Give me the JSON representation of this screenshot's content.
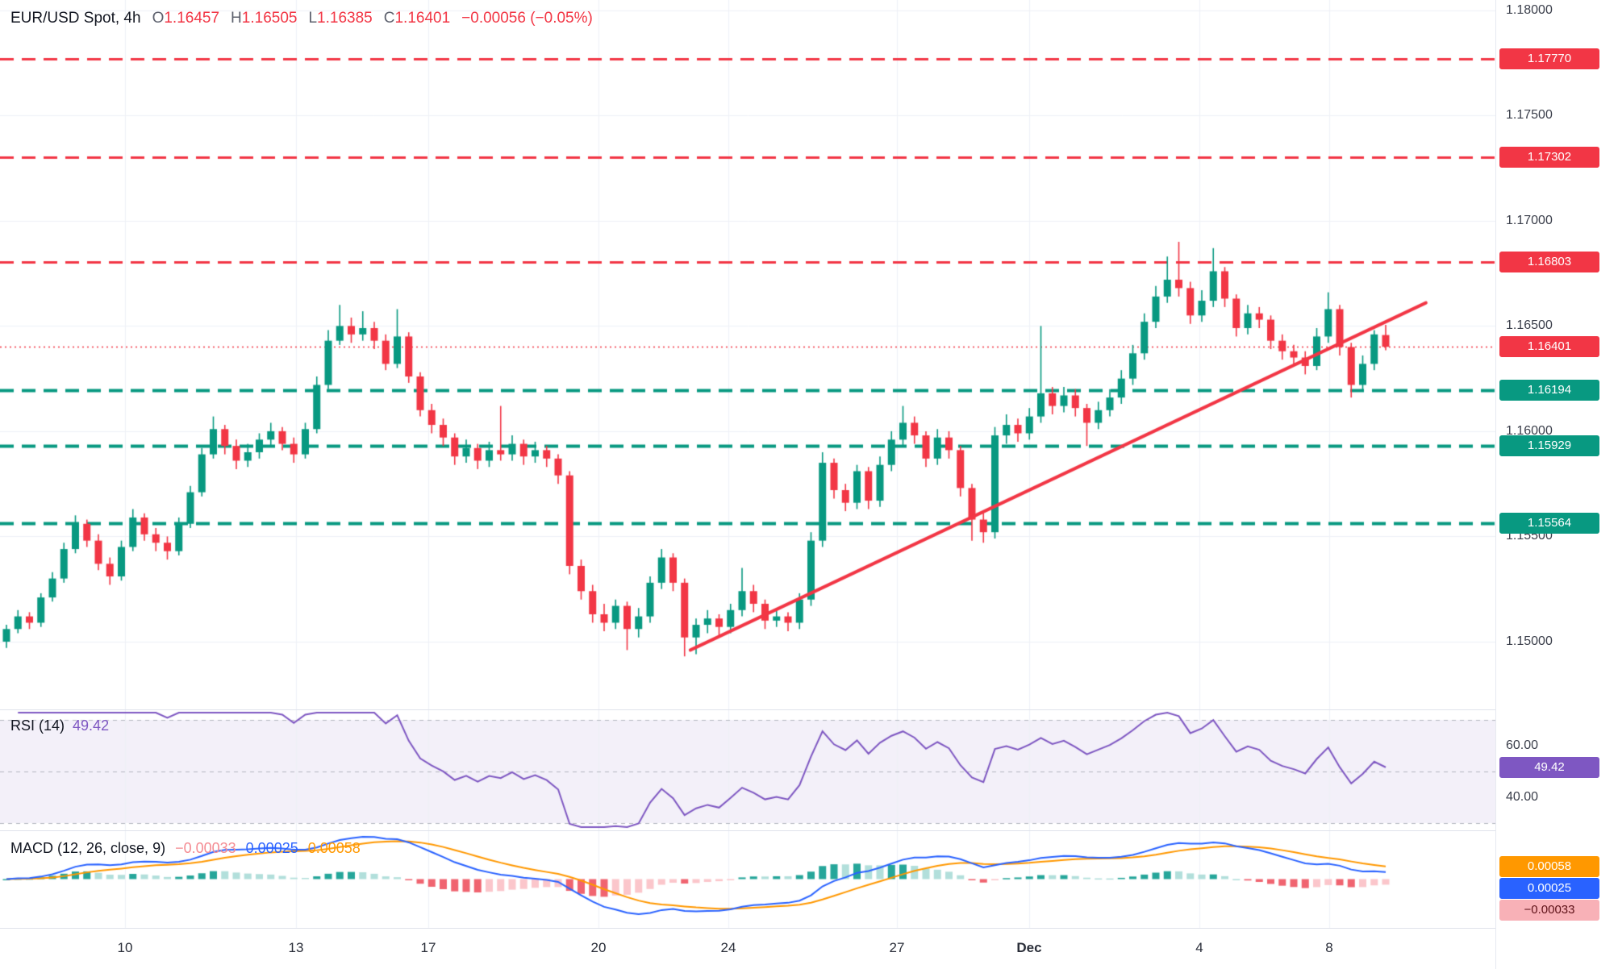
{
  "legend": {
    "symbol": "EUR/USD Spot, 4h",
    "o_key": "O",
    "open": "1.16457",
    "h_key": "H",
    "high": "1.16505",
    "l_key": "L",
    "low": "1.16385",
    "c_key": "C",
    "close": "1.16401",
    "change": "−0.00056 (−0.05%)"
  },
  "colors": {
    "up": "#089981",
    "down": "#f23645",
    "resistance": "#f23645",
    "support": "#089981",
    "trendline": "#f23645",
    "current_line": "#f23645",
    "grid": "#eef1f7",
    "rsi_line": "#7e57c2",
    "rsi_band_fill": "rgba(126,87,194,0.09)",
    "band_dash": "#b4b7c0",
    "macd_line": "#2962ff",
    "macd_signal": "#ff9800",
    "hist_grow_above": "#26a69a",
    "hist_fall_above": "#b2dfdb",
    "hist_grow_below": "#fbc6cb",
    "hist_fall_below": "#f06470"
  },
  "chart_data": {
    "type": "candlestick",
    "symbol": "EUR/USD Spot",
    "interval": "4h",
    "price_axis": {
      "top_price": 1.18049,
      "bottom_price": 1.14678,
      "ticks": [
        {
          "price": 1.18,
          "label": "1.18000"
        },
        {
          "price": 1.175,
          "label": "1.17500"
        },
        {
          "price": 1.17,
          "label": "1.17000"
        },
        {
          "price": 1.165,
          "label": "1.16500"
        },
        {
          "price": 1.16,
          "label": "1.16000"
        },
        {
          "price": 1.155,
          "label": "1.15500"
        },
        {
          "price": 1.15,
          "label": "1.15000"
        }
      ]
    },
    "levels": [
      {
        "price": 1.1777,
        "label": "1.17770",
        "kind": "resistance"
      },
      {
        "price": 1.17302,
        "label": "1.17302",
        "kind": "resistance"
      },
      {
        "price": 1.16803,
        "label": "1.16803",
        "kind": "resistance"
      },
      {
        "price": 1.16194,
        "label": "1.16194",
        "kind": "support"
      },
      {
        "price": 1.15929,
        "label": "1.15929",
        "kind": "support"
      },
      {
        "price": 1.15564,
        "label": "1.15564",
        "kind": "support"
      }
    ],
    "current_price": {
      "price": 1.16401,
      "label": "1.16401"
    },
    "trendline": {
      "from_index": 59.5,
      "from_price": 1.1496,
      "to_index": 123.5,
      "to_price": 1.1661
    },
    "time_ticks": [
      {
        "label": "10",
        "index": 10.3
      },
      {
        "label": "13",
        "index": 25.2
      },
      {
        "label": "17",
        "index": 36.7
      },
      {
        "label": "20",
        "index": 51.5
      },
      {
        "label": "24",
        "index": 62.8
      },
      {
        "label": "27",
        "index": 77.5
      },
      {
        "label": "Dec",
        "index": 89,
        "bold": true
      },
      {
        "label": "4",
        "index": 103.8
      },
      {
        "label": "8",
        "index": 115.1
      }
    ],
    "indicators": {
      "rsi": {
        "title": "RSI (14)",
        "period": 14,
        "value_label": "49.42",
        "upper_band": 70,
        "mid_band": 50,
        "lower_band": 30,
        "axis_labels": [
          {
            "value": 60,
            "label": "60.00"
          },
          {
            "value": 40,
            "label": "40.00"
          }
        ]
      },
      "macd": {
        "title": "MACD (12, 26, close, 9)",
        "fast": 12,
        "slow": 26,
        "source": "close",
        "smoothing": 9,
        "hist_label": "−0.00033",
        "macd_label": "0.00025",
        "signal_label": "0.00058"
      }
    },
    "candles": [
      [
        1.15,
        1.1508,
        1.1497,
        1.1506
      ],
      [
        1.1506,
        1.1515,
        1.1504,
        1.1512
      ],
      [
        1.1512,
        1.1514,
        1.1506,
        1.1509
      ],
      [
        1.1509,
        1.1523,
        1.1507,
        1.1521
      ],
      [
        1.1521,
        1.1533,
        1.1519,
        1.153
      ],
      [
        1.153,
        1.1547,
        1.1528,
        1.1544
      ],
      [
        1.1544,
        1.156,
        1.1542,
        1.1556
      ],
      [
        1.1556,
        1.1558,
        1.1545,
        1.1548
      ],
      [
        1.1548,
        1.1551,
        1.1534,
        1.1537
      ],
      [
        1.1537,
        1.154,
        1.1527,
        1.1531
      ],
      [
        1.1531,
        1.1548,
        1.1529,
        1.1545
      ],
      [
        1.1545,
        1.1563,
        1.1543,
        1.1559
      ],
      [
        1.1559,
        1.1561,
        1.1548,
        1.1551
      ],
      [
        1.1551,
        1.1554,
        1.1543,
        1.1547
      ],
      [
        1.1547,
        1.155,
        1.1539,
        1.1543
      ],
      [
        1.1543,
        1.1559,
        1.1541,
        1.1556
      ],
      [
        1.1556,
        1.1574,
        1.1554,
        1.1571
      ],
      [
        1.1571,
        1.1592,
        1.1569,
        1.1589
      ],
      [
        1.1589,
        1.1607,
        1.1587,
        1.1601
      ],
      [
        1.1601,
        1.1603,
        1.1589,
        1.1593
      ],
      [
        1.1593,
        1.1596,
        1.1582,
        1.1586
      ],
      [
        1.1586,
        1.1594,
        1.1583,
        1.159
      ],
      [
        1.159,
        1.1599,
        1.1587,
        1.1596
      ],
      [
        1.1596,
        1.1604,
        1.1593,
        1.16
      ],
      [
        1.16,
        1.1602,
        1.1591,
        1.1594
      ],
      [
        1.1594,
        1.1597,
        1.1585,
        1.1589
      ],
      [
        1.1589,
        1.1604,
        1.1587,
        1.1601
      ],
      [
        1.1601,
        1.1626,
        1.1599,
        1.1622
      ],
      [
        1.1622,
        1.1648,
        1.162,
        1.1643
      ],
      [
        1.1643,
        1.166,
        1.1641,
        1.165
      ],
      [
        1.165,
        1.1654,
        1.1642,
        1.1646
      ],
      [
        1.1646,
        1.1657,
        1.1643,
        1.1649
      ],
      [
        1.1649,
        1.1652,
        1.1639,
        1.1643
      ],
      [
        1.1643,
        1.1646,
        1.1629,
        1.1632
      ],
      [
        1.1632,
        1.1658,
        1.163,
        1.1645
      ],
      [
        1.1645,
        1.1647,
        1.1623,
        1.1626
      ],
      [
        1.1626,
        1.1628,
        1.1607,
        1.161
      ],
      [
        1.161,
        1.1613,
        1.1599,
        1.1603
      ],
      [
        1.1603,
        1.1606,
        1.1593,
        1.1597
      ],
      [
        1.1597,
        1.1599,
        1.1584,
        1.1588
      ],
      [
        1.1588,
        1.1596,
        1.1585,
        1.1592
      ],
      [
        1.1592,
        1.1594,
        1.1582,
        1.1586
      ],
      [
        1.1586,
        1.1595,
        1.1583,
        1.1591
      ],
      [
        1.1591,
        1.1612,
        1.1586,
        1.1589
      ],
      [
        1.1589,
        1.1598,
        1.1586,
        1.1594
      ],
      [
        1.1594,
        1.1596,
        1.1584,
        1.1588
      ],
      [
        1.1588,
        1.1595,
        1.1585,
        1.1591
      ],
      [
        1.1591,
        1.1593,
        1.1583,
        1.1587
      ],
      [
        1.1587,
        1.1589,
        1.1575,
        1.1579
      ],
      [
        1.1579,
        1.1581,
        1.1532,
        1.1536
      ],
      [
        1.1536,
        1.1539,
        1.152,
        1.1524
      ],
      [
        1.1524,
        1.1527,
        1.1509,
        1.1513
      ],
      [
        1.1513,
        1.1518,
        1.1505,
        1.1509
      ],
      [
        1.1509,
        1.152,
        1.1506,
        1.1517
      ],
      [
        1.1517,
        1.1519,
        1.1496,
        1.1506
      ],
      [
        1.1506,
        1.1516,
        1.1502,
        1.1512
      ],
      [
        1.1512,
        1.1531,
        1.1509,
        1.1528
      ],
      [
        1.1528,
        1.1544,
        1.1525,
        1.154
      ],
      [
        1.154,
        1.1542,
        1.1524,
        1.1528
      ],
      [
        1.1528,
        1.153,
        1.1493,
        1.1502
      ],
      [
        1.1502,
        1.1511,
        1.1494,
        1.1508
      ],
      [
        1.1508,
        1.1515,
        1.1504,
        1.1511
      ],
      [
        1.1511,
        1.1513,
        1.1503,
        1.1507
      ],
      [
        1.1507,
        1.1518,
        1.1504,
        1.1515
      ],
      [
        1.1515,
        1.1535,
        1.1512,
        1.1524
      ],
      [
        1.1524,
        1.1527,
        1.1514,
        1.1518
      ],
      [
        1.1518,
        1.152,
        1.1506,
        1.151
      ],
      [
        1.151,
        1.1516,
        1.1507,
        1.1512
      ],
      [
        1.1512,
        1.1514,
        1.1505,
        1.1509
      ],
      [
        1.1509,
        1.1523,
        1.1506,
        1.152
      ],
      [
        1.152,
        1.1552,
        1.1517,
        1.1548
      ],
      [
        1.1548,
        1.159,
        1.1545,
        1.1585
      ],
      [
        1.1585,
        1.1587,
        1.1568,
        1.1572
      ],
      [
        1.1572,
        1.1575,
        1.1562,
        1.1566
      ],
      [
        1.1566,
        1.1584,
        1.1563,
        1.1581
      ],
      [
        1.1581,
        1.1583,
        1.1563,
        1.1567
      ],
      [
        1.1567,
        1.1588,
        1.1564,
        1.1584
      ],
      [
        1.1584,
        1.16,
        1.1581,
        1.1596
      ],
      [
        1.1596,
        1.1612,
        1.1593,
        1.1604
      ],
      [
        1.1604,
        1.1607,
        1.1594,
        1.1598
      ],
      [
        1.1598,
        1.16,
        1.1583,
        1.1587
      ],
      [
        1.1587,
        1.1601,
        1.1584,
        1.1597
      ],
      [
        1.1597,
        1.16,
        1.1587,
        1.1591
      ],
      [
        1.1591,
        1.1593,
        1.1569,
        1.1573
      ],
      [
        1.1573,
        1.1575,
        1.1548,
        1.1558
      ],
      [
        1.1558,
        1.1561,
        1.1547,
        1.1552
      ],
      [
        1.1552,
        1.1602,
        1.1549,
        1.1598
      ],
      [
        1.1598,
        1.1608,
        1.1594,
        1.1603
      ],
      [
        1.1603,
        1.1606,
        1.1595,
        1.1599
      ],
      [
        1.1599,
        1.1611,
        1.1596,
        1.1607
      ],
      [
        1.1607,
        1.165,
        1.1604,
        1.1618
      ],
      [
        1.1618,
        1.1621,
        1.1608,
        1.1612
      ],
      [
        1.1612,
        1.1621,
        1.1609,
        1.1617
      ],
      [
        1.1617,
        1.162,
        1.1607,
        1.1611
      ],
      [
        1.1611,
        1.1613,
        1.1593,
        1.1604
      ],
      [
        1.1604,
        1.1614,
        1.1601,
        1.161
      ],
      [
        1.161,
        1.162,
        1.1607,
        1.1616
      ],
      [
        1.1616,
        1.1629,
        1.1613,
        1.1625
      ],
      [
        1.1625,
        1.1641,
        1.1622,
        1.1637
      ],
      [
        1.1637,
        1.1656,
        1.1634,
        1.1652
      ],
      [
        1.1652,
        1.1669,
        1.1649,
        1.1664
      ],
      [
        1.1664,
        1.1683,
        1.1661,
        1.1672
      ],
      [
        1.1672,
        1.169,
        1.1664,
        1.1668
      ],
      [
        1.1668,
        1.1671,
        1.1651,
        1.1655
      ],
      [
        1.1655,
        1.1667,
        1.1652,
        1.1662
      ],
      [
        1.1662,
        1.1687,
        1.1659,
        1.1676
      ],
      [
        1.1676,
        1.1678,
        1.1659,
        1.1663
      ],
      [
        1.1663,
        1.1665,
        1.1645,
        1.1649
      ],
      [
        1.1649,
        1.166,
        1.1646,
        1.1656
      ],
      [
        1.1656,
        1.1659,
        1.1649,
        1.1653
      ],
      [
        1.1653,
        1.1655,
        1.1639,
        1.1643
      ],
      [
        1.1643,
        1.1646,
        1.1634,
        1.1638
      ],
      [
        1.1638,
        1.1641,
        1.1631,
        1.1635
      ],
      [
        1.1635,
        1.1638,
        1.1627,
        1.1631
      ],
      [
        1.1631,
        1.1649,
        1.1629,
        1.1645
      ],
      [
        1.1645,
        1.1666,
        1.1642,
        1.1658
      ],
      [
        1.1658,
        1.166,
        1.1636,
        1.164
      ],
      [
        1.164,
        1.1642,
        1.1616,
        1.1622
      ],
      [
        1.1622,
        1.1636,
        1.1619,
        1.1632
      ],
      [
        1.1632,
        1.1648,
        1.1629,
        1.1646
      ],
      [
        1.16457,
        1.16505,
        1.16385,
        1.16401
      ]
    ]
  }
}
